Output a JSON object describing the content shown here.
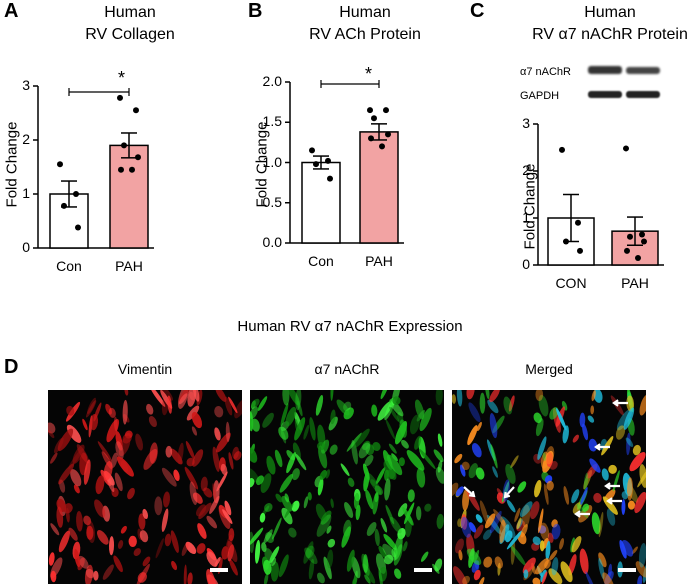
{
  "panels": {
    "A": {
      "letter": "A",
      "title": [
        "Human",
        "RV Collagen"
      ],
      "ylabel": "Fold Change",
      "significance": "*"
    },
    "B": {
      "letter": "B",
      "title": [
        "Human",
        "RV ACh Protein"
      ],
      "ylabel": "Fold Change",
      "significance": "*"
    },
    "C": {
      "letter": "C",
      "title": [
        "Human",
        "RV α7 nAChR Protein"
      ],
      "ylabel": "Fold Change",
      "blot_labels": [
        "α7 nAChR",
        "GAPDH"
      ]
    },
    "D": {
      "letter": "D",
      "section_title": "Human RV α7 nAChR  Expression",
      "image_labels": [
        "Vimentin",
        "α7 nAChR",
        "Merged"
      ]
    }
  },
  "chart_data": [
    {
      "type": "bar",
      "panel": "A",
      "categories": [
        "Con",
        "PAH"
      ],
      "values": [
        1.0,
        1.9
      ],
      "errors": [
        0.24,
        0.23
      ],
      "points": [
        [
          1.55,
          1.0,
          0.78,
          0.38
        ],
        [
          2.78,
          2.55,
          1.9,
          1.68,
          1.45,
          1.45
        ]
      ],
      "colors": [
        "#ffffff",
        "#f2a3a3"
      ],
      "ylabel": "Fold Change",
      "ylim": [
        0,
        3
      ],
      "yticks": [
        0,
        1,
        2,
        3
      ]
    },
    {
      "type": "bar",
      "panel": "B",
      "categories": [
        "Con",
        "PAH"
      ],
      "values": [
        1.0,
        1.38
      ],
      "errors": [
        0.08,
        0.1
      ],
      "points": [
        [
          1.15,
          1.02,
          0.98,
          0.8
        ],
        [
          1.65,
          1.65,
          1.55,
          1.35,
          1.3,
          1.2
        ]
      ],
      "colors": [
        "#ffffff",
        "#f2a3a3"
      ],
      "ylabel": "Fold Change",
      "ylim": [
        0,
        2.0
      ],
      "yticks": [
        0.0,
        0.5,
        1.0,
        1.5,
        2.0
      ]
    },
    {
      "type": "bar",
      "panel": "C",
      "categories": [
        "CON",
        "PAH"
      ],
      "values": [
        1.0,
        0.72
      ],
      "errors": [
        0.5,
        0.3
      ],
      "points": [
        [
          2.45,
          0.9,
          0.5,
          0.3
        ],
        [
          2.48,
          0.65,
          0.6,
          0.5,
          0.3,
          0.15
        ]
      ],
      "colors": [
        "#ffffff",
        "#f2a3a3"
      ],
      "ylabel": "Fold Change",
      "ylim": [
        0,
        3
      ],
      "yticks": [
        0,
        1,
        2,
        3
      ]
    }
  ]
}
